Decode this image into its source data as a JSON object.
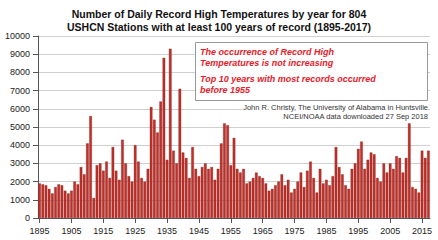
{
  "chart_data": {
    "type": "bar",
    "title": "Number of Daily Record High Temperatures by year for 804\nUSHCN Stations with at least 100 years of record (1895-2017)",
    "annotations": [
      "The occurrence of Record High\nTemperatures is not increasing",
      "Top 10 years with most records occurred\nbefore 1955"
    ],
    "credits": [
      "John R. Christy, The University of Alabama in Huntsville",
      "NCEI/NOAA data downloaded 27 Sep 2018"
    ],
    "categories": [
      1895,
      null,
      null,
      null,
      null,
      null,
      null,
      null,
      null,
      null,
      1905,
      null,
      null,
      null,
      null,
      null,
      null,
      null,
      null,
      null,
      1915,
      null,
      null,
      null,
      null,
      null,
      null,
      null,
      null,
      null,
      1925,
      null,
      null,
      null,
      null,
      null,
      null,
      null,
      null,
      null,
      1935,
      null,
      null,
      null,
      null,
      null,
      null,
      null,
      null,
      null,
      1945,
      null,
      null,
      null,
      null,
      null,
      null,
      null,
      null,
      null,
      1955,
      null,
      null,
      null,
      null,
      null,
      null,
      null,
      null,
      null,
      1965,
      null,
      null,
      null,
      null,
      null,
      null,
      null,
      null,
      null,
      1975,
      null,
      null,
      null,
      null,
      null,
      null,
      null,
      null,
      null,
      1985,
      null,
      null,
      null,
      null,
      null,
      null,
      null,
      null,
      null,
      1995,
      null,
      null,
      null,
      null,
      null,
      null,
      null,
      null,
      null,
      2005,
      null,
      null,
      null,
      null,
      null,
      null,
      null,
      null,
      null,
      2015,
      null,
      null
    ],
    "values": [
      1900,
      1850,
      1800,
      1600,
      1350,
      1700,
      1850,
      1800,
      1500,
      1350,
      1500,
      2000,
      1850,
      2800,
      2400,
      4100,
      5600,
      1100,
      2900,
      3000,
      2600,
      3100,
      2200,
      3900,
      2600,
      2100,
      4300,
      3000,
      2300,
      2000,
      4000,
      3100,
      2200,
      2000,
      2700,
      6100,
      5400,
      4700,
      6400,
      8800,
      3200,
      9300,
      3700,
      3000,
      7100,
      3600,
      3300,
      2200,
      3900,
      2700,
      2300,
      2800,
      3000,
      2700,
      2800,
      2100,
      2700,
      4100,
      5200,
      5100,
      2900,
      4400,
      2700,
      2500,
      2700,
      1900,
      2000,
      2200,
      2500,
      2300,
      2200,
      1900,
      1500,
      1600,
      1800,
      2000,
      2400,
      1800,
      2100,
      1400,
      1600,
      2000,
      2500,
      1700,
      2600,
      3100,
      2200,
      1400,
      2700,
      1900,
      2100,
      1800,
      2300,
      3900,
      2800,
      2400,
      1800,
      1600,
      2700,
      3000,
      3800,
      4200,
      2700,
      3200,
      3600,
      3500,
      2200,
      2000,
      3000,
      2500,
      3000,
      2700,
      3400,
      3300,
      2500,
      3300,
      5200,
      1700,
      1600,
      1400,
      3700,
      3300,
      3700
    ],
    "color": "#c0302a",
    "ylim": [
      0,
      10000
    ],
    "yticks": [
      0,
      1000,
      2000,
      3000,
      4000,
      5000,
      6000,
      7000,
      8000,
      9000,
      10000
    ],
    "grid": true
  }
}
